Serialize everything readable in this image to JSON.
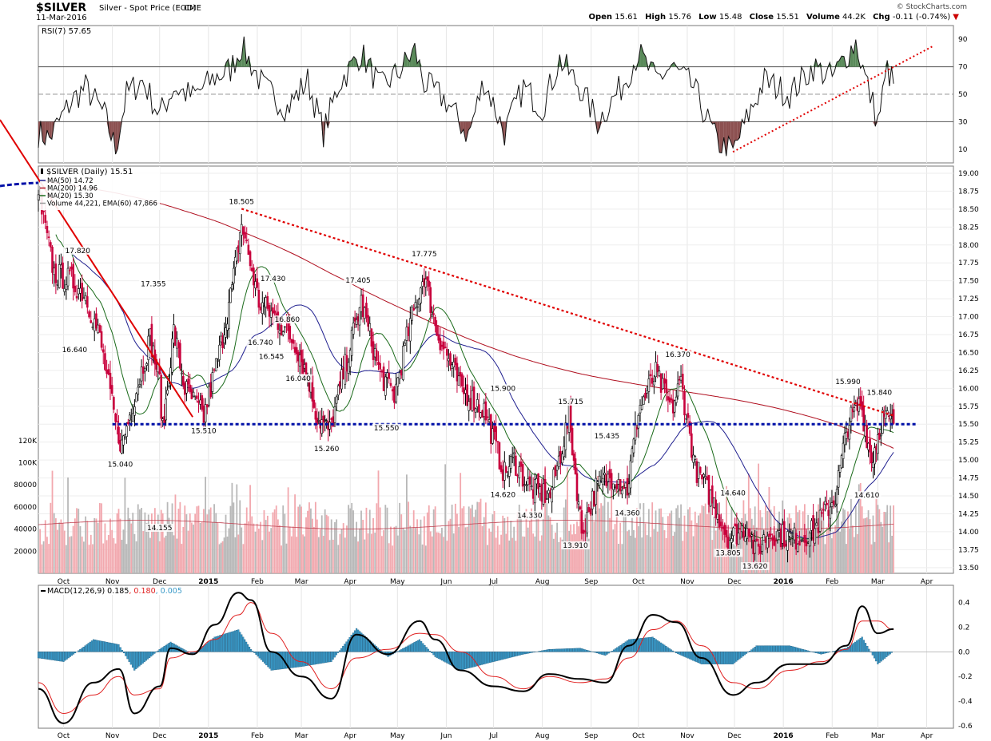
{
  "header": {
    "symbol": "$SILVER",
    "description": "Silver - Spot Price (EOD)",
    "exchange": "CME",
    "date": "11-Mar-2016",
    "credit": "© StockCharts.com",
    "open_label": "Open",
    "open": "15.61",
    "high_label": "High",
    "high": "15.76",
    "low_label": "Low",
    "low": "15.48",
    "close_label": "Close",
    "close": "15.51",
    "volume_label": "Volume",
    "volume": "44.2K",
    "chg_label": "Chg",
    "chg": "-0.11 (-0.74%)",
    "chg_arrow": "▼"
  },
  "colors": {
    "price_up": "#000000",
    "price_down": "#c8003c",
    "ma50": "#1f1f8f",
    "ma200": "#b01020",
    "ma20": "#1a6a1a",
    "vol_up": "#b8b8b8",
    "vol_down": "#f2a8ae",
    "rsi_over": "#5a8a5a",
    "rsi_under": "#8c5050",
    "macd_hist": "#3a9ac8",
    "trend_red": "#e00000",
    "support_blue": "#0010a8"
  },
  "chart_data": [
    {
      "type": "line",
      "panel": "RSI",
      "title": "RSI(7) 57.65",
      "ylim": [
        0,
        100
      ],
      "yticks": [
        10,
        30,
        50,
        70,
        90
      ],
      "levels": [
        30,
        50,
        70
      ],
      "x": [
        "2014-09-15",
        "2014-09-22",
        "2014-10-06",
        "2014-10-15",
        "2014-10-27",
        "2014-11-03",
        "2014-11-10",
        "2014-11-20",
        "2014-12-01",
        "2014-12-10",
        "2014-12-22",
        "2015-01-05",
        "2015-01-15",
        "2015-01-22",
        "2015-02-05",
        "2015-02-20",
        "2015-03-05",
        "2015-03-15",
        "2015-03-25",
        "2015-04-08",
        "2015-04-20",
        "2015-05-01",
        "2015-05-12",
        "2015-05-18",
        "2015-06-01",
        "2015-06-15",
        "2015-06-25",
        "2015-07-08",
        "2015-07-20",
        "2015-08-01",
        "2015-08-12",
        "2015-08-25",
        "2015-09-05",
        "2015-09-20",
        "2015-10-01",
        "2015-10-12",
        "2015-10-22",
        "2015-11-05",
        "2015-11-20",
        "2015-11-30",
        "2015-12-10",
        "2015-12-20",
        "2016-01-05",
        "2016-01-20",
        "2016-02-01",
        "2016-02-10",
        "2016-02-16",
        "2016-02-22",
        "2016-03-01",
        "2016-03-07",
        "2016-03-11"
      ],
      "values": [
        22,
        18,
        45,
        55,
        35,
        10,
        50,
        60,
        35,
        55,
        48,
        62,
        68,
        85,
        55,
        40,
        60,
        22,
        58,
        80,
        55,
        65,
        82,
        58,
        45,
        20,
        60,
        22,
        55,
        40,
        75,
        55,
        30,
        55,
        80,
        60,
        70,
        55,
        15,
        8,
        35,
        60,
        50,
        70,
        62,
        78,
        88,
        62,
        30,
        68,
        57.65
      ],
      "annotations": []
    },
    {
      "type": "candlestick",
      "panel": "Price",
      "title": "$SILVER (Daily) 15.51",
      "legend": [
        "MA(50) 14.72",
        "MA(200) 14.96",
        "MA(20) 15.30",
        "Volume 44,221, EMA(60) 47,866"
      ],
      "ylim": [
        13.5,
        19.0
      ],
      "yticks": [
        13.5,
        13.75,
        14.0,
        14.25,
        14.5,
        14.75,
        15.0,
        15.25,
        15.5,
        15.75,
        16.0,
        16.25,
        16.5,
        16.75,
        17.0,
        17.25,
        17.5,
        17.75,
        18.0,
        18.25,
        18.5,
        18.75,
        19.0
      ],
      "xticks": [
        "Oct",
        "Nov",
        "Dec",
        "2015",
        "Feb",
        "Mar",
        "Apr",
        "May",
        "Jun",
        "Jul",
        "Aug",
        "Sep",
        "Oct",
        "Nov",
        "Dec",
        "2016",
        "Feb",
        "Mar",
        "Apr"
      ],
      "xtick_dates": [
        "2014-10-01",
        "2014-11-01",
        "2014-12-01",
        "2015-01-01",
        "2015-02-01",
        "2015-03-01",
        "2015-04-01",
        "2015-05-01",
        "2015-06-01",
        "2015-07-01",
        "2015-08-01",
        "2015-09-01",
        "2015-10-01",
        "2015-11-01",
        "2015-12-01",
        "2016-01-01",
        "2016-02-01",
        "2016-03-01",
        "2016-04-01"
      ],
      "price_path": {
        "x": [
          "2014-09-15",
          "2014-09-25",
          "2014-10-06",
          "2014-10-15",
          "2014-10-24",
          "2014-11-03",
          "2014-11-07",
          "2014-11-14",
          "2014-11-25",
          "2014-12-01",
          "2014-12-03",
          "2014-12-10",
          "2014-12-17",
          "2014-12-29",
          "2015-01-08",
          "2015-01-16",
          "2015-01-22",
          "2015-02-02",
          "2015-02-12",
          "2015-02-26",
          "2015-03-06",
          "2015-03-11",
          "2015-03-19",
          "2015-04-01",
          "2015-04-08",
          "2015-04-20",
          "2015-04-29",
          "2015-05-08",
          "2015-05-18",
          "2015-05-26",
          "2015-06-10",
          "2015-06-25",
          "2015-07-08",
          "2015-07-14",
          "2015-07-24",
          "2015-08-06",
          "2015-08-18",
          "2015-08-26",
          "2015-09-04",
          "2015-09-15",
          "2015-09-24",
          "2015-10-01",
          "2015-10-12",
          "2015-10-22",
          "2015-10-28",
          "2015-11-06",
          "2015-11-18",
          "2015-11-27",
          "2015-12-10",
          "2015-12-14",
          "2015-12-23",
          "2016-01-08",
          "2016-01-20",
          "2016-02-03",
          "2016-02-11",
          "2016-02-19",
          "2016-02-26",
          "2016-03-04",
          "2016-03-11"
        ],
        "close": [
          18.7,
          17.6,
          17.5,
          17.3,
          16.7,
          15.5,
          15.2,
          15.8,
          16.7,
          16.1,
          15.4,
          16.8,
          16.0,
          15.6,
          16.5,
          17.4,
          18.3,
          17.2,
          17.0,
          16.6,
          16.1,
          15.6,
          15.4,
          16.6,
          17.2,
          16.2,
          15.9,
          16.8,
          17.6,
          16.8,
          16.0,
          15.7,
          14.8,
          15.0,
          14.6,
          14.5,
          15.6,
          14.0,
          14.6,
          14.8,
          14.6,
          15.7,
          16.2,
          15.7,
          16.1,
          14.9,
          14.4,
          13.9,
          14.1,
          13.7,
          14.0,
          13.9,
          14.0,
          14.5,
          15.5,
          15.8,
          15.0,
          15.6,
          15.51
        ]
      },
      "annotations": [
        {
          "x": "2014-10-08",
          "y": 16.64,
          "text": "16.640"
        },
        {
          "x": "2014-10-10",
          "y": 17.82,
          "text": "17.820"
        },
        {
          "x": "2014-11-06",
          "y": 15.04,
          "text": "15.040"
        },
        {
          "x": "2014-11-27",
          "y": 17.355,
          "text": "17.355"
        },
        {
          "x": "2014-12-01",
          "y": 14.155,
          "text": "14.155"
        },
        {
          "x": "2014-12-29",
          "y": 15.51,
          "text": "15.510"
        },
        {
          "x": "2015-01-22",
          "y": 18.505,
          "text": "18.505"
        },
        {
          "x": "2015-02-10",
          "y": 16.545,
          "text": "16.545"
        },
        {
          "x": "2015-02-11",
          "y": 17.43,
          "text": "17.430"
        },
        {
          "x": "2015-02-03",
          "y": 16.74,
          "text": "16.740"
        },
        {
          "x": "2015-02-20",
          "y": 16.86,
          "text": "16.860"
        },
        {
          "x": "2015-02-27",
          "y": 16.04,
          "text": "16.040"
        },
        {
          "x": "2015-03-17",
          "y": 15.26,
          "text": "15.260"
        },
        {
          "x": "2015-04-06",
          "y": 17.405,
          "text": "17.405"
        },
        {
          "x": "2015-04-24",
          "y": 15.55,
          "text": "15.550"
        },
        {
          "x": "2015-05-18",
          "y": 17.775,
          "text": "17.775"
        },
        {
          "x": "2015-07-07",
          "y": 15.9,
          "text": "15.900"
        },
        {
          "x": "2015-07-07",
          "y": 14.62,
          "text": "14.620"
        },
        {
          "x": "2015-07-24",
          "y": 14.33,
          "text": "14.330"
        },
        {
          "x": "2015-08-19",
          "y": 15.715,
          "text": "15.715"
        },
        {
          "x": "2015-08-22",
          "y": 13.91,
          "text": "13.910"
        },
        {
          "x": "2015-09-11",
          "y": 15.435,
          "text": "15.435"
        },
        {
          "x": "2015-09-24",
          "y": 14.36,
          "text": "14.360"
        },
        {
          "x": "2015-10-26",
          "y": 16.37,
          "text": "16.370"
        },
        {
          "x": "2015-11-30",
          "y": 14.64,
          "text": "14.640"
        },
        {
          "x": "2015-11-27",
          "y": 13.805,
          "text": "13.805"
        },
        {
          "x": "2015-12-14",
          "y": 13.62,
          "text": "13.620"
        },
        {
          "x": "2016-02-11",
          "y": 15.99,
          "text": "15.990"
        },
        {
          "x": "2016-02-23",
          "y": 14.61,
          "text": "14.610"
        },
        {
          "x": "2016-03-02",
          "y": 15.84,
          "text": "15.840"
        }
      ],
      "volume_axis": {
        "yticks": [
          "20000",
          "40000",
          "60000",
          "80000",
          "100K",
          "120K"
        ]
      }
    },
    {
      "type": "line",
      "panel": "MACD",
      "title": "MACD(12,26,9)",
      "legend": [
        "0.185",
        "0.180",
        "0.005"
      ],
      "ylim": [
        -0.62,
        0.54
      ],
      "yticks": [
        "0.4",
        "0.2",
        "0.0",
        "-0.2",
        "-0.4",
        "-0.6"
      ],
      "x": [
        "2014-09-15",
        "2014-10-01",
        "2014-10-20",
        "2014-11-05",
        "2014-11-15",
        "2014-12-01",
        "2014-12-08",
        "2014-12-22",
        "2015-01-05",
        "2015-01-20",
        "2015-01-28",
        "2015-02-10",
        "2015-03-01",
        "2015-03-20",
        "2015-04-05",
        "2015-04-25",
        "2015-05-15",
        "2015-05-25",
        "2015-06-10",
        "2015-07-01",
        "2015-07-20",
        "2015-08-05",
        "2015-08-25",
        "2015-09-10",
        "2015-09-25",
        "2015-10-10",
        "2015-10-25",
        "2015-11-10",
        "2015-11-30",
        "2015-12-15",
        "2016-01-05",
        "2016-01-25",
        "2016-02-10",
        "2016-02-20",
        "2016-03-01",
        "2016-03-11"
      ],
      "series": [
        {
          "name": "MACD",
          "values": [
            -0.3,
            -0.58,
            -0.25,
            -0.14,
            -0.5,
            -0.28,
            0.03,
            -0.02,
            0.22,
            0.48,
            0.42,
            0.0,
            -0.2,
            -0.38,
            0.14,
            -0.02,
            0.25,
            0.1,
            -0.15,
            -0.28,
            -0.32,
            -0.18,
            -0.22,
            -0.25,
            0.05,
            0.3,
            0.24,
            -0.05,
            -0.35,
            -0.25,
            -0.1,
            -0.1,
            0.05,
            0.37,
            0.15,
            0.185
          ]
        },
        {
          "name": "Signal",
          "values": [
            -0.25,
            -0.5,
            -0.35,
            -0.2,
            -0.35,
            -0.3,
            -0.05,
            0.0,
            0.1,
            0.3,
            0.4,
            0.15,
            -0.08,
            -0.3,
            -0.05,
            0.02,
            0.15,
            0.14,
            0.0,
            -0.2,
            -0.3,
            -0.2,
            -0.25,
            -0.22,
            -0.05,
            0.18,
            0.25,
            0.05,
            -0.25,
            -0.3,
            -0.15,
            -0.08,
            0.02,
            0.25,
            0.25,
            0.18
          ]
        },
        {
          "name": "Histogram",
          "values": [
            -0.05,
            -0.08,
            0.1,
            0.06,
            -0.15,
            0.02,
            0.08,
            -0.02,
            0.12,
            0.18,
            0.02,
            -0.15,
            -0.12,
            -0.08,
            0.19,
            -0.04,
            0.1,
            -0.04,
            -0.15,
            -0.08,
            -0.02,
            0.02,
            0.03,
            -0.03,
            0.1,
            0.12,
            -0.01,
            -0.1,
            -0.1,
            0.05,
            0.05,
            -0.02,
            0.03,
            0.12,
            -0.1,
            0.005
          ]
        }
      ]
    }
  ]
}
